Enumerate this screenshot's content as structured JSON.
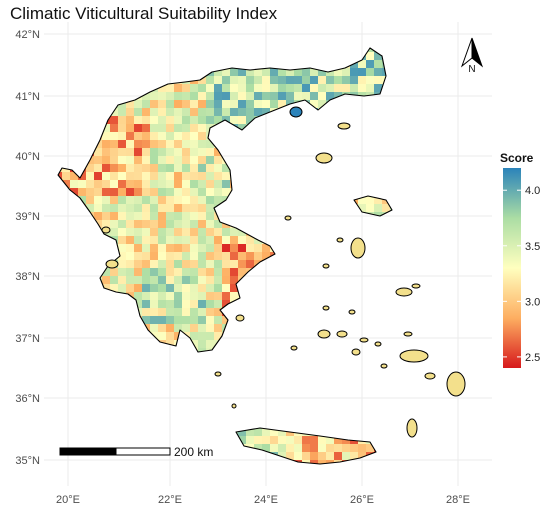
{
  "title": "Climatic Viticultural Suitability Index",
  "x_ticks": [
    "20°E",
    "22°E",
    "24°E",
    "26°E",
    "28°E"
  ],
  "y_ticks": [
    "42°N",
    "41°N",
    "40°N",
    "39°N",
    "38°N",
    "37°N",
    "36°N",
    "35°N"
  ],
  "legend": {
    "title": "Score",
    "ticks": [
      "4.0",
      "3.5",
      "3.0",
      "2.5"
    ],
    "colors": [
      "#2b83ba",
      "#abdda4",
      "#ffffbf",
      "#fdae61",
      "#d7191c"
    ],
    "range": [
      2.4,
      4.2
    ]
  },
  "scale_bar": {
    "label": "200 km"
  },
  "north_arrow": {
    "label": "N"
  }
}
